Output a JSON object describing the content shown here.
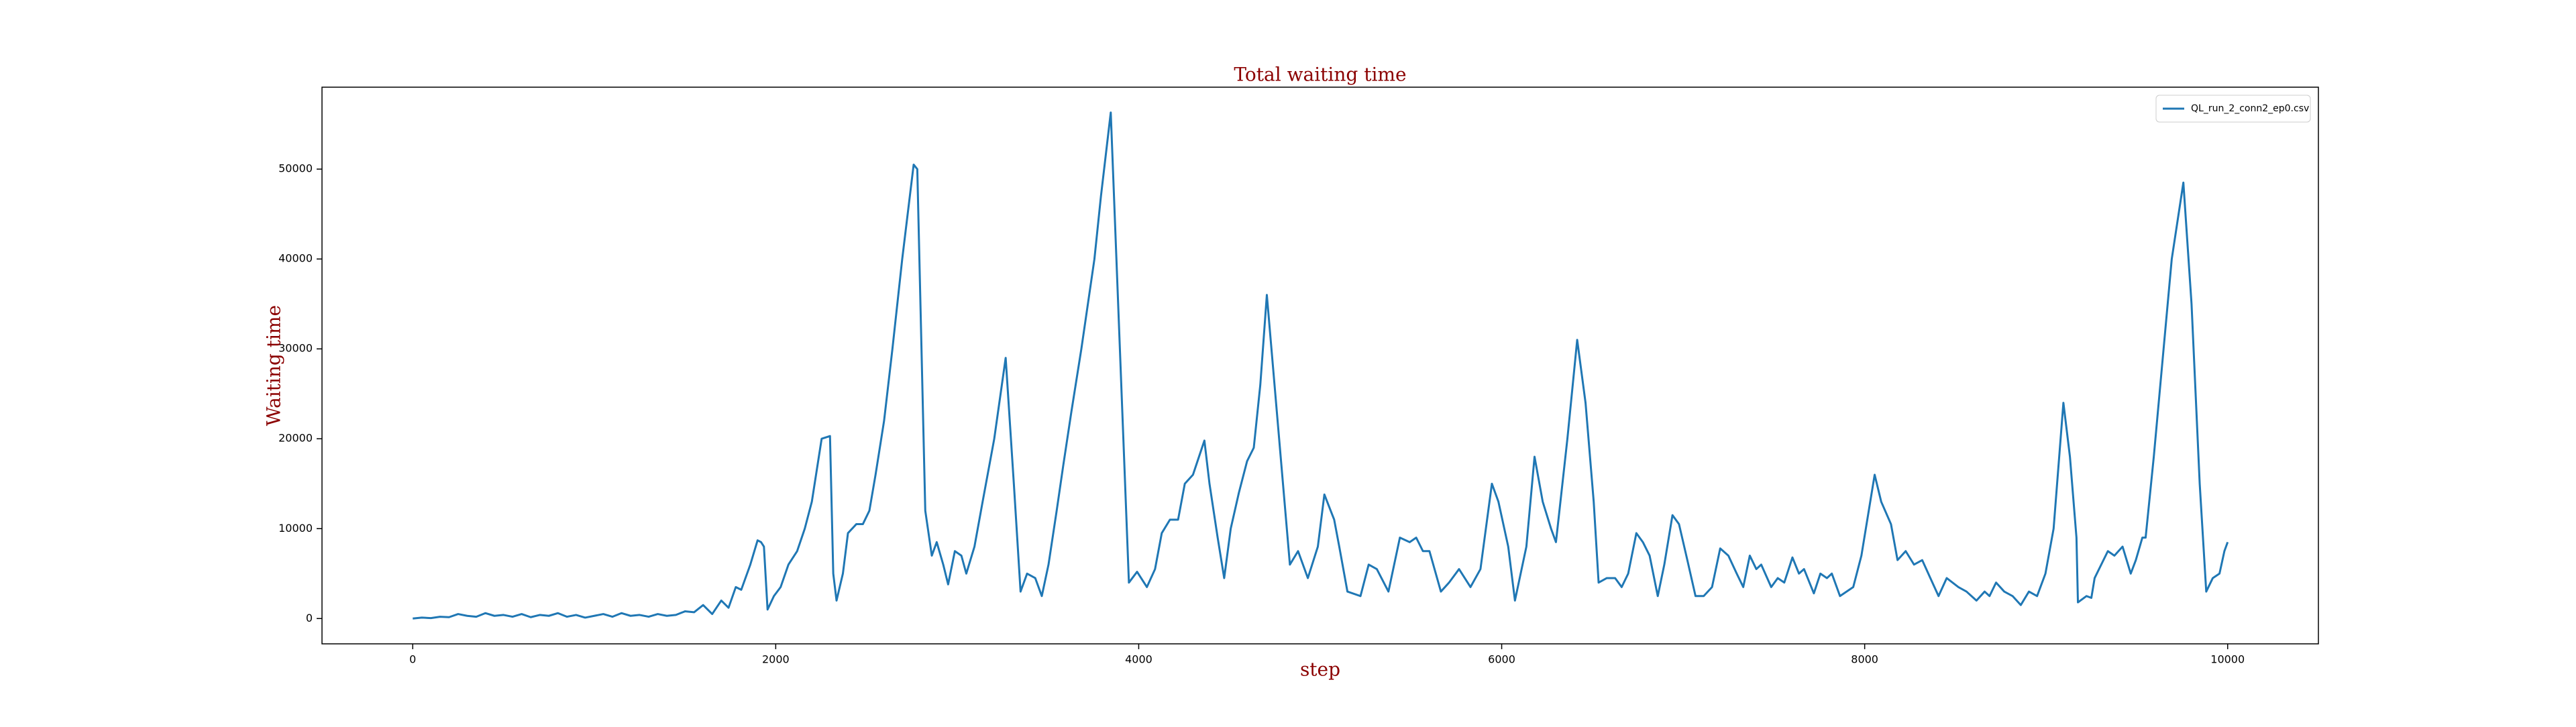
{
  "chart_data": {
    "type": "line",
    "title": "Total waiting time",
    "xlabel": "step",
    "ylabel": "Waiting time",
    "x": [
      0,
      50,
      100,
      150,
      200,
      250,
      300,
      350,
      400,
      450,
      500,
      550,
      600,
      650,
      700,
      750,
      800,
      850,
      900,
      950,
      1000,
      1050,
      1100,
      1150,
      1200,
      1250,
      1300,
      1350,
      1400,
      1450,
      1500,
      1550,
      1600,
      1650,
      1700,
      1740,
      1780,
      1810,
      1860,
      1900,
      1919,
      1935,
      1955,
      1990,
      2027,
      2070,
      2118,
      2160,
      2199,
      2253,
      2299,
      2317,
      2335,
      2370,
      2398,
      2444,
      2480,
      2516,
      2550,
      2597,
      2643,
      2697,
      2760,
      2780,
      2824,
      2860,
      2887,
      2923,
      2950,
      2987,
      3023,
      3050,
      3095,
      3140,
      3204,
      3267,
      3312,
      3349,
      3385,
      3430,
      3466,
      3503,
      3548,
      3584,
      3629,
      3684,
      3756,
      3792,
      3846,
      3946,
      3991,
      4045,
      4090,
      4127,
      4172,
      4217,
      4254,
      4299,
      4362,
      4390,
      4435,
      4471,
      4507,
      4552,
      4597,
      4634,
      4670,
      4706,
      4833,
      4878,
      4932,
      4987,
      5023,
      5077,
      5105,
      5150,
      5222,
      5267,
      5312,
      5376,
      5439,
      5493,
      5529,
      5566,
      5602,
      5665,
      5710,
      5765,
      5828,
      5883,
      5946,
      5982,
      6036,
      6073,
      6136,
      6181,
      6226,
      6272,
      6299,
      6362,
      6416,
      6462,
      6507,
      6534,
      6579,
      6625,
      6661,
      6697,
      6742,
      6778,
      6815,
      6860,
      6896,
      6941,
      6977,
      7023,
      7068,
      7113,
      7159,
      7204,
      7249,
      7295,
      7331,
      7367,
      7403,
      7430,
      7485,
      7521,
      7557,
      7602,
      7638,
      7666,
      7720,
      7756,
      7792,
      7819,
      7864,
      7937,
      7982,
      8055,
      8091,
      8145,
      8181,
      8226,
      8272,
      8317,
      8362,
      8407,
      8452,
      8516,
      8561,
      8616,
      8661,
      8688,
      8724,
      8769,
      8815,
      8860,
      8905,
      8950,
      8996,
      9041,
      9095,
      9131,
      9167,
      9175,
      9222,
      9249,
      9267,
      9340,
      9376,
      9421,
      9466,
      9494,
      9530,
      9548,
      9593,
      9647,
      9692,
      9756,
      9801,
      9846,
      9882,
      9918,
      9955,
      9982,
      10000
    ],
    "series": [
      {
        "name": "QL_run_2_conn2_ep0.csv",
        "color": "#1f77b4",
        "values": [
          0,
          100,
          50,
          200,
          150,
          500,
          300,
          200,
          600,
          300,
          400,
          200,
          500,
          150,
          400,
          300,
          600,
          200,
          400,
          100,
          300,
          500,
          200,
          600,
          300,
          400,
          200,
          500,
          300,
          400,
          800,
          700,
          1500,
          500,
          2000,
          1200,
          3500,
          3200,
          6000,
          8700,
          8500,
          8000,
          1000,
          2500,
          3500,
          6000,
          7500,
          10000,
          13000,
          20000,
          20300,
          5000,
          2000,
          5000,
          9500,
          10500,
          10500,
          12000,
          16000,
          22000,
          30000,
          40000,
          50500,
          50000,
          12000,
          7000,
          8500,
          6000,
          3800,
          7500,
          7000,
          5000,
          8000,
          13000,
          20000,
          29000,
          15000,
          3000,
          5000,
          4500,
          2500,
          6000,
          12000,
          17000,
          23000,
          30000,
          40000,
          47000,
          56300,
          4000,
          5200,
          3500,
          5500,
          9500,
          11000,
          11000,
          15000,
          16000,
          19800,
          15000,
          9000,
          4500,
          10000,
          14000,
          17500,
          19000,
          26000,
          36000,
          6000,
          7500,
          4500,
          8000,
          13800,
          11000,
          8000,
          3000,
          2500,
          6000,
          5500,
          3000,
          9000,
          8500,
          9000,
          7500,
          7500,
          3000,
          4000,
          5500,
          3500,
          5500,
          15000,
          13000,
          8000,
          2000,
          8000,
          18000,
          13000,
          10000,
          8500,
          20000,
          31000,
          24000,
          13000,
          4000,
          4500,
          4500,
          3500,
          5000,
          9500,
          8500,
          7000,
          2500,
          6000,
          11500,
          10500,
          6500,
          2500,
          2500,
          3500,
          7800,
          7000,
          5000,
          3500,
          7000,
          5500,
          6000,
          3500,
          4500,
          4000,
          6800,
          5000,
          5500,
          2800,
          5000,
          4500,
          5000,
          2500,
          3500,
          7000,
          16000,
          13000,
          10500,
          6500,
          7500,
          6000,
          6500,
          4500,
          2500,
          4500,
          3500,
          3000,
          2000,
          3000,
          2500,
          4000,
          3000,
          2500,
          1500,
          3000,
          2500,
          5000,
          10000,
          24000,
          18000,
          9000,
          1800,
          2500,
          2300,
          4500,
          7500,
          7000,
          8000,
          5000,
          6500,
          9000,
          9000,
          18000,
          30000,
          40000,
          48500,
          35000,
          15000,
          3000,
          4500,
          5000,
          7500,
          8500
        ]
      }
    ],
    "xlim": [
      -500,
      10500
    ],
    "ylim": [
      -2815,
      59115
    ],
    "xticks": [
      0,
      2000,
      4000,
      6000,
      8000,
      10000
    ],
    "yticks": [
      0,
      10000,
      20000,
      30000,
      40000,
      50000
    ],
    "legend": "upper right"
  }
}
